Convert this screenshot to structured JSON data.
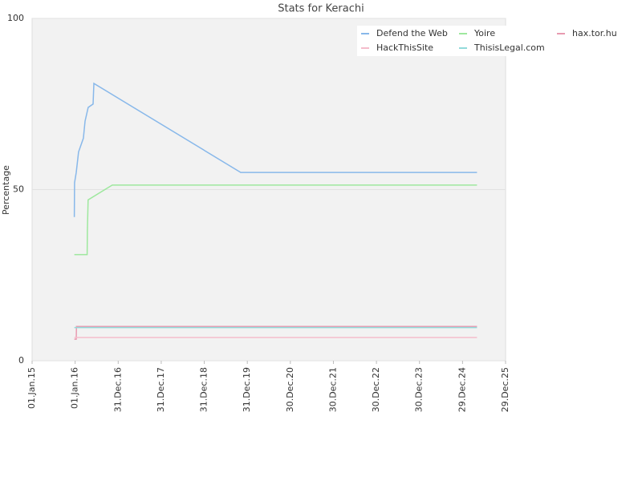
{
  "chart_data": {
    "type": "line",
    "title": "Stats for Kerachi",
    "y_label": "Percentage",
    "xlim": [
      "2015-01-01",
      "2025-12-29"
    ],
    "ylim": [
      0,
      100
    ],
    "yticks": [
      0,
      50,
      100
    ],
    "grid": true,
    "xticks": [
      {
        "value": "2015-01-01",
        "label": "01.Jan.15"
      },
      {
        "value": "2016-01-01",
        "label": "01.Jan.16"
      },
      {
        "value": "2016-12-31",
        "label": "31.Dec.16"
      },
      {
        "value": "2017-12-31",
        "label": "31.Dec.17"
      },
      {
        "value": "2018-12-31",
        "label": "31.Dec.18"
      },
      {
        "value": "2019-12-31",
        "label": "31.Dec.19"
      },
      {
        "value": "2020-12-30",
        "label": "30.Dec.20"
      },
      {
        "value": "2021-12-30",
        "label": "30.Dec.21"
      },
      {
        "value": "2022-12-30",
        "label": "30.Dec.22"
      },
      {
        "value": "2023-12-30",
        "label": "30.Dec.23"
      },
      {
        "value": "2024-12-29",
        "label": "29.Dec.24"
      },
      {
        "value": "2025-12-29",
        "label": "29.Dec.25"
      }
    ],
    "legend": "top-right",
    "series": [
      {
        "name": "Defend the Web",
        "color": "#88b8ea",
        "x": [
          "2015-12-25",
          "2015-12-27",
          "2016-01-10",
          "2016-01-30",
          "2016-03-11",
          "2016-03-25",
          "2016-04-21",
          "2016-06-01",
          "2016-06-08",
          "2019-11-05",
          "2025-05-01"
        ],
        "values": [
          42,
          52,
          55,
          61,
          65,
          70,
          74,
          75,
          81,
          55,
          55
        ]
      },
      {
        "name": "Yoire",
        "color": "#9ee89e",
        "x": [
          "2015-12-25",
          "2016-04-12",
          "2016-04-14",
          "2016-04-20",
          "2016-11-11",
          "2025-05-01"
        ],
        "values": [
          31,
          31,
          38,
          47,
          51.3,
          51.3
        ]
      },
      {
        "name": "hax.tor.hu",
        "color": "#e89ab0",
        "x": [
          "2015-12-25",
          "2016-01-10",
          "2016-01-12",
          "2025-05-01"
        ],
        "values": [
          6.3,
          6.3,
          10,
          10
        ]
      },
      {
        "name": "HackThisSite",
        "color": "#f4bccb",
        "x": [
          "2015-12-25",
          "2025-05-01"
        ],
        "values": [
          6.8,
          6.8
        ]
      },
      {
        "name": "ThisisLegal.com",
        "color": "#92dada",
        "x": [
          "2015-12-25",
          "2025-05-01"
        ],
        "values": [
          9.7,
          9.7
        ]
      }
    ]
  }
}
